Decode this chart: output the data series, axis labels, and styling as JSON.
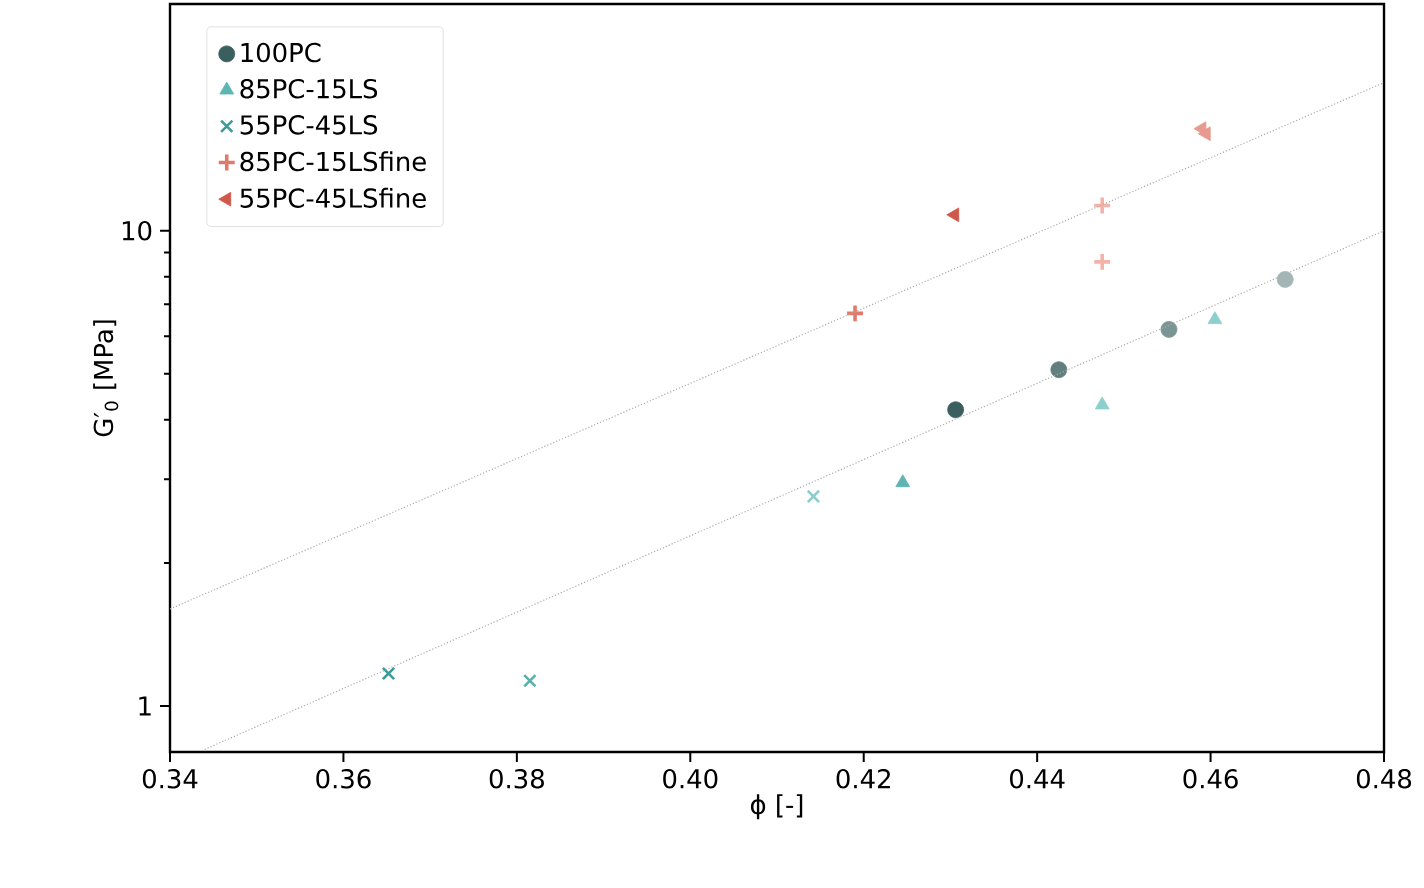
{
  "chart_data": {
    "type": "scatter",
    "xlabel": "ϕ [-]",
    "ylabel": "G′$_{0}$ [MPa]",
    "log": "y",
    "xlim": [
      0.34,
      0.48
    ],
    "xticks": [
      0.34,
      0.36,
      0.38,
      {
        "value": 0.4,
        "label": "0.40"
      },
      0.42,
      0.44,
      0.46,
      0.48
    ],
    "ylim": [
      0.8,
      30
    ],
    "yticks": [
      1,
      10
    ],
    "grid": false,
    "legend": "top left",
    "series": [
      {
        "name": "100PC",
        "marker": "circle",
        "x": [
          0.4306,
          0.4425,
          0.4552,
          0.4686
        ],
        "values": [
          4.2,
          5.1,
          6.2,
          7.9
        ],
        "colors": [
          "#3b5e5e",
          "#627f7f",
          "#7b9595",
          "#a3b5b5"
        ]
      },
      {
        "name": "85PC-15LS",
        "marker": "triangle",
        "x": [
          0.4245,
          0.4475,
          0.4605
        ],
        "values": [
          2.95,
          4.3,
          6.5
        ],
        "colors": [
          "#5cb5b0",
          "#8ccfcc",
          "#8ccfcc"
        ]
      },
      {
        "name": "55PC-45LS",
        "marker": "cross",
        "x": [
          0.3652,
          0.3815,
          0.4142
        ],
        "values": [
          1.17,
          1.13,
          2.76
        ],
        "colors": [
          "#3a9c98",
          "#5ab0ab",
          "#8ccccc"
        ]
      },
      {
        "name": "85PC-15LSfine",
        "marker": "plus",
        "x": [
          0.419,
          0.4475,
          0.4475
        ],
        "values": [
          6.7,
          8.6,
          11.3
        ],
        "colors": [
          "#e07a6a",
          "#f3b3aa",
          "#f3b3aa"
        ]
      },
      {
        "name": "55PC-45LSfine",
        "marker": "triangle_left",
        "x": [
          0.4305,
          0.459,
          0.4595
        ],
        "values": [
          10.8,
          16.4,
          16.0
        ],
        "colors": [
          "#d0584a",
          "#e79a90",
          "#e79a90"
        ]
      },
      {
        "type": "line",
        "line_style": "dotted",
        "color": "#aaaaaa",
        "x": [
          0.34,
          0.48
        ],
        "values": [
          1.6,
          20.5
        ]
      },
      {
        "type": "line",
        "line_style": "dotted",
        "color": "#aaaaaa",
        "x": [
          0.344,
          0.48
        ],
        "values": [
          0.81,
          10.0
        ]
      }
    ]
  }
}
